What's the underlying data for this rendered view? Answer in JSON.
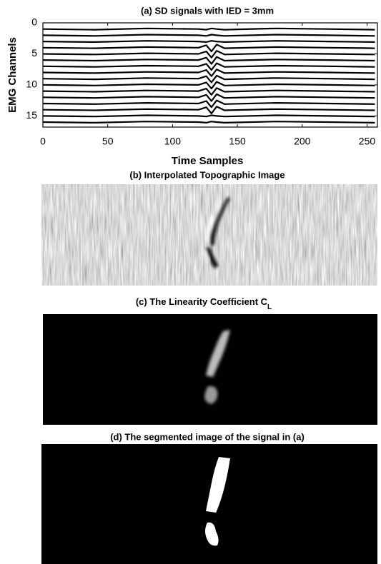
{
  "chart_data": {
    "type": "line",
    "title": "(a) SD signals with IED = 3mm",
    "x_label": "Time Samples",
    "y_label": "EMG Channels",
    "xlim": [
      0,
      258
    ],
    "xticks": [
      0,
      50,
      100,
      150,
      200,
      250
    ],
    "ylim": [
      0,
      16.8
    ],
    "y_inverted": true,
    "yticks": [
      0,
      5,
      10,
      15
    ],
    "grid": false,
    "x": [
      0,
      40,
      80,
      120,
      126,
      130,
      134,
      140,
      180,
      220,
      256
    ],
    "series": [
      {
        "color": "#000000",
        "values": [
          1,
          1.1,
          0.9,
          1,
          1.1,
          0.9,
          1,
          1.1,
          0.9,
          1,
          1.1
        ]
      },
      {
        "color": "#000000",
        "values": [
          2,
          2.1,
          1.9,
          2,
          2.1,
          1.9,
          2,
          2.1,
          1.9,
          2,
          2.1
        ]
      },
      {
        "color": "#000000",
        "values": [
          3,
          3.1,
          2.9,
          3,
          3.1,
          2.9,
          3,
          3.1,
          2.9,
          3,
          3.1
        ]
      },
      {
        "color": "#000000",
        "values": [
          4,
          4.1,
          3.9,
          4,
          3.6,
          4.6,
          3.5,
          4.1,
          3.9,
          4,
          4.1
        ]
      },
      {
        "color": "#000000",
        "values": [
          5,
          5.1,
          4.9,
          5,
          4.6,
          5.6,
          4.5,
          5.1,
          4.9,
          5,
          5.1
        ]
      },
      {
        "color": "#000000",
        "values": [
          6,
          6.1,
          5.9,
          6,
          5.6,
          6.6,
          5.5,
          6.1,
          5.9,
          6,
          6.1
        ]
      },
      {
        "color": "#000000",
        "values": [
          7,
          7.1,
          6.9,
          7,
          6.6,
          7.6,
          6.5,
          7.1,
          6.9,
          7,
          7.1
        ]
      },
      {
        "color": "#000000",
        "values": [
          8,
          8.1,
          7.9,
          8,
          7.6,
          8.6,
          7.5,
          8.1,
          7.9,
          8,
          8.1
        ]
      },
      {
        "color": "#000000",
        "values": [
          9,
          9.1,
          8.9,
          9,
          8.6,
          9.6,
          8.5,
          9.1,
          8.9,
          9,
          9.1
        ]
      },
      {
        "color": "#000000",
        "values": [
          10,
          10.1,
          9.9,
          10,
          9.6,
          10.6,
          9.5,
          10.1,
          9.9,
          10,
          10.1
        ]
      },
      {
        "color": "#000000",
        "values": [
          11,
          11.1,
          10.9,
          11,
          10.6,
          11.6,
          10.5,
          11.1,
          10.9,
          11,
          11.1
        ]
      },
      {
        "color": "#000000",
        "values": [
          12,
          12.1,
          11.9,
          12,
          11.6,
          12.6,
          11.5,
          12.1,
          11.9,
          12,
          12.1
        ]
      },
      {
        "color": "#000000",
        "values": [
          13,
          13.1,
          12.9,
          13,
          12.6,
          13.6,
          12.5,
          13.1,
          12.9,
          13,
          13.1
        ]
      },
      {
        "color": "#000000",
        "values": [
          14,
          14.1,
          13.9,
          14,
          13.6,
          14.6,
          13.5,
          14.1,
          13.9,
          14,
          14.1
        ]
      },
      {
        "color": "#000000",
        "values": [
          15,
          15.1,
          14.9,
          15,
          15.1,
          14.9,
          15,
          15.1,
          14.9,
          15,
          15.1
        ]
      },
      {
        "color": "#000000",
        "values": [
          16,
          16.1,
          15.9,
          16,
          16.1,
          15.9,
          16,
          16.1,
          15.9,
          16,
          16.1
        ]
      }
    ]
  },
  "panels": [
    {
      "title": "(b) Interpolated Topographic Image"
    },
    {
      "title": "(c) The Linearity Coefficient C",
      "subscript": "L"
    },
    {
      "title": "(d) The segmented image of the signal in (a)"
    }
  ]
}
